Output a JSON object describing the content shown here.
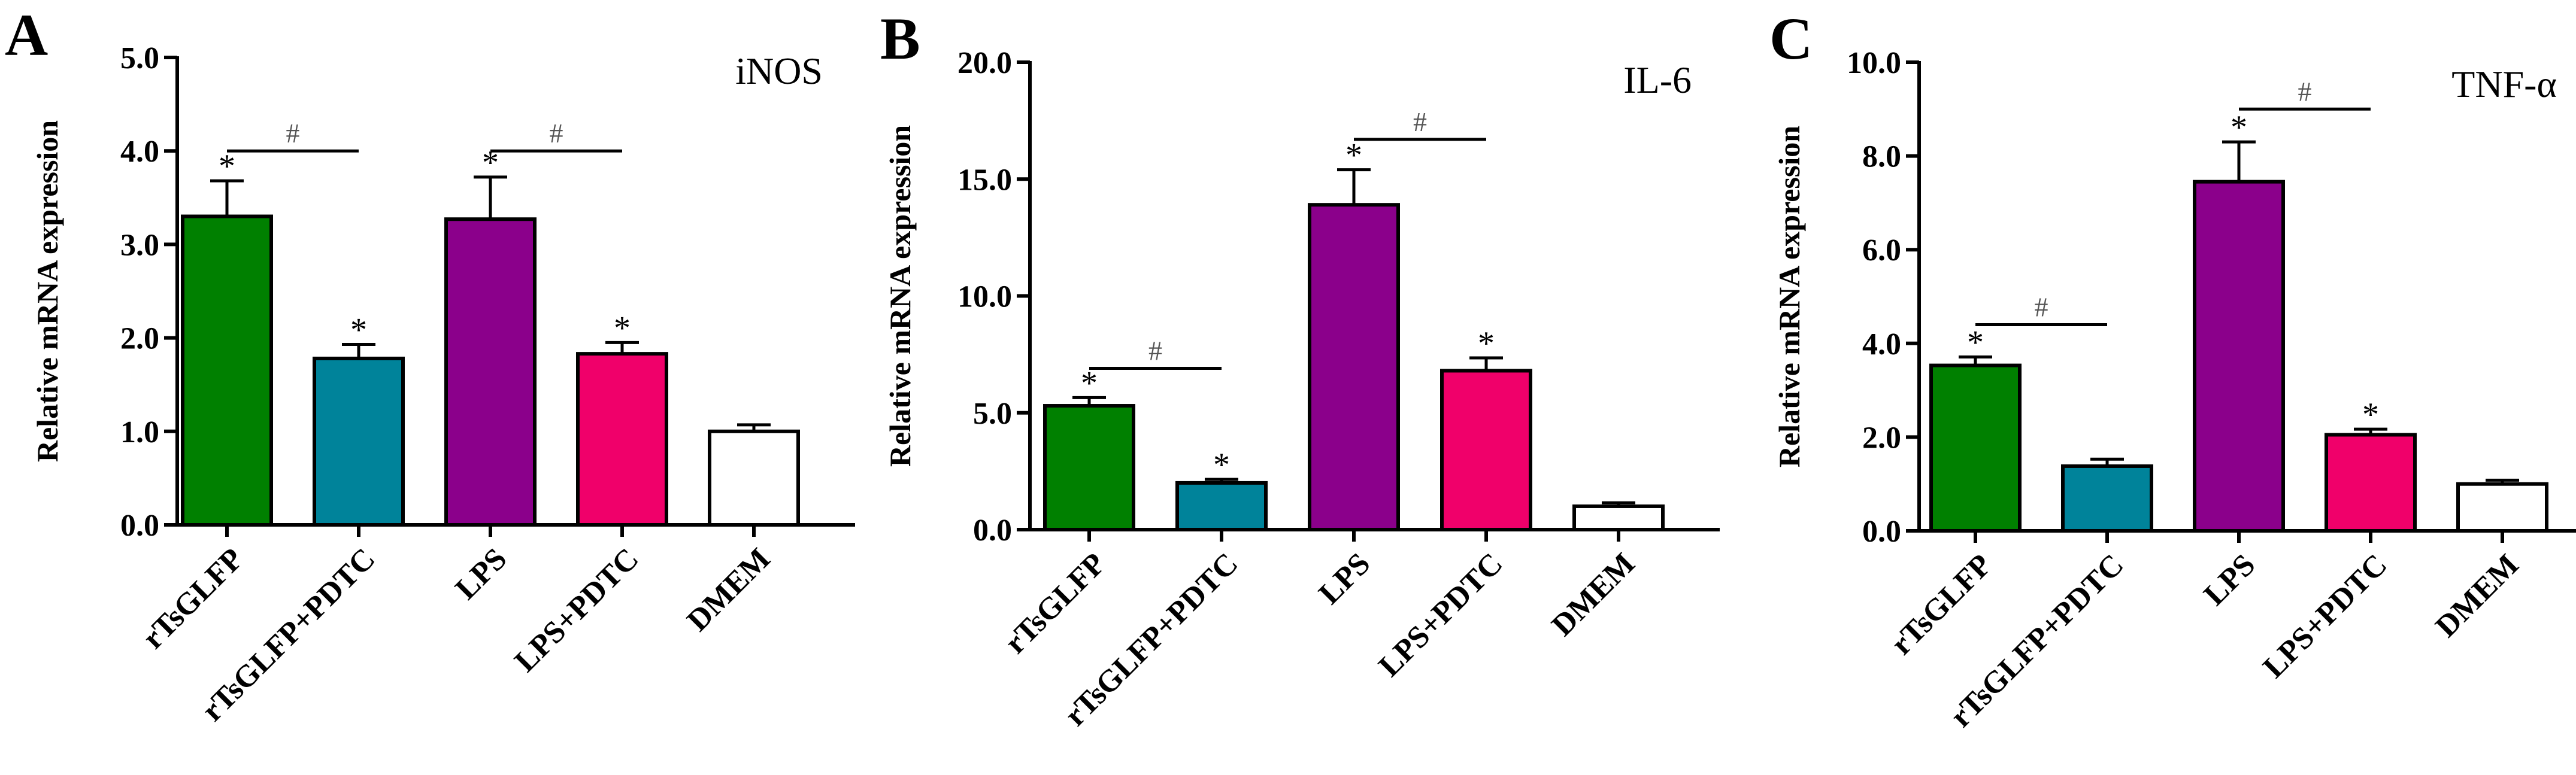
{
  "chart_data": [
    {
      "type": "bar",
      "panel_label": "A",
      "title": "iNOS",
      "xlabel": "",
      "ylabel": "Relative mRNA expression",
      "ylim": [
        0,
        5.0
      ],
      "yticks": [
        "0.0",
        "1.0",
        "2.0",
        "3.0",
        "4.0",
        "5.0"
      ],
      "categories": [
        "rTsGLFP",
        "rTsGLFP+PDTC",
        "LPS",
        "LPS+PDTC",
        "DMEM"
      ],
      "values": [
        3.3,
        1.78,
        3.27,
        1.83,
        1.0
      ],
      "errors": [
        0.38,
        0.15,
        0.45,
        0.12,
        0.07
      ],
      "colors": [
        "#008000",
        "#00839a",
        "#8b008b",
        "#f0006a",
        "#ffffff"
      ],
      "star_markers": [
        "*",
        "*",
        "*",
        "*",
        ""
      ],
      "comparisons": [
        {
          "from": 0,
          "to": 1,
          "label": "#",
          "level": 4.0
        },
        {
          "from": 2,
          "to": 3,
          "label": "#",
          "level": 4.0
        }
      ],
      "grid": false
    },
    {
      "type": "bar",
      "panel_label": "B",
      "title": "IL-6",
      "xlabel": "",
      "ylabel": "Relative mRNA expression",
      "ylim": [
        0,
        20.0
      ],
      "yticks": [
        "0.0",
        "5.0",
        "10.0",
        "15.0",
        "20.0"
      ],
      "categories": [
        "rTsGLFP",
        "rTsGLFP+PDTC",
        "LPS",
        "LPS+PDTC",
        "DMEM"
      ],
      "values": [
        5.3,
        2.0,
        13.9,
        6.8,
        1.0
      ],
      "errors": [
        0.35,
        0.15,
        1.5,
        0.55,
        0.15
      ],
      "colors": [
        "#008000",
        "#00839a",
        "#8b008b",
        "#f0006a",
        "#ffffff"
      ],
      "star_markers": [
        "*",
        "*",
        "*",
        "*",
        ""
      ],
      "comparisons": [
        {
          "from": 0,
          "to": 1,
          "label": "#",
          "level": 6.9
        },
        {
          "from": 2,
          "to": 3,
          "label": "#",
          "level": 16.7
        }
      ],
      "grid": false
    },
    {
      "type": "bar",
      "panel_label": "C",
      "title": "TNF-α",
      "xlabel": "",
      "ylabel": "Relative mRNA expression",
      "ylim": [
        0,
        10.0
      ],
      "yticks": [
        "0.0",
        "2.0",
        "4.0",
        "6.0",
        "8.0",
        "10.0"
      ],
      "categories": [
        "rTsGLFP",
        "rTsGLFP+PDTC",
        "LPS",
        "LPS+PDTC",
        "DMEM"
      ],
      "values": [
        3.53,
        1.38,
        7.45,
        2.05,
        1.0
      ],
      "errors": [
        0.18,
        0.15,
        0.85,
        0.12,
        0.08
      ],
      "colors": [
        "#008000",
        "#00839a",
        "#8b008b",
        "#f0006a",
        "#ffffff"
      ],
      "star_markers": [
        "*",
        "",
        "*",
        "*",
        ""
      ],
      "comparisons": [
        {
          "from": 0,
          "to": 1,
          "label": "#",
          "level": 4.4
        },
        {
          "from": 2,
          "to": 3,
          "label": "#",
          "level": 9.0
        }
      ],
      "grid": false
    }
  ]
}
